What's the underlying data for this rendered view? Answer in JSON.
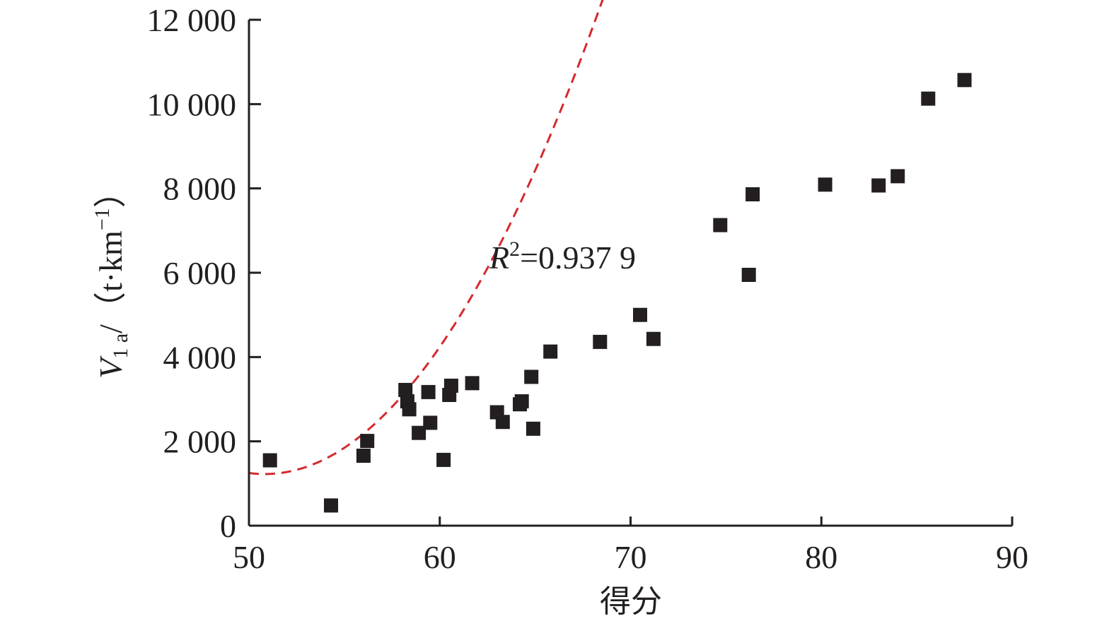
{
  "chart_data": {
    "type": "scatter",
    "xlabel": "得分",
    "ylabel": {
      "symbol": "V",
      "subscript": "1 a",
      "unit": "/（t·km",
      "unit_sup": "−1",
      "unit_close": "）"
    },
    "xlim": [
      50,
      90
    ],
    "ylim": [
      0,
      12000
    ],
    "x_ticks": [
      "50",
      "60",
      "70",
      "80",
      "90"
    ],
    "y_ticks": [
      "0",
      "2 000",
      "4 000",
      "6 000",
      "8 000",
      "10 000",
      "12 000"
    ],
    "grid": false,
    "marker": "square",
    "point_color": "#231f20",
    "trend_color": "#d42a2f",
    "trend_type": "polynomial (order 2)",
    "trend_coefficients": [
      35.9,
      -3650,
      94000
    ],
    "annotation": {
      "r": "R",
      "sup": "2",
      "value": "=0.937 9"
    },
    "points": [
      {
        "x": 51.1,
        "y": 1550
      },
      {
        "x": 54.3,
        "y": 480
      },
      {
        "x": 56.0,
        "y": 1660
      },
      {
        "x": 56.2,
        "y": 2010
      },
      {
        "x": 58.2,
        "y": 3220
      },
      {
        "x": 58.3,
        "y": 2950
      },
      {
        "x": 58.4,
        "y": 2760
      },
      {
        "x": 58.9,
        "y": 2200
      },
      {
        "x": 59.4,
        "y": 3170
      },
      {
        "x": 59.5,
        "y": 2440
      },
      {
        "x": 60.2,
        "y": 1560
      },
      {
        "x": 60.5,
        "y": 3100
      },
      {
        "x": 60.6,
        "y": 3320
      },
      {
        "x": 61.7,
        "y": 3380
      },
      {
        "x": 63.0,
        "y": 2690
      },
      {
        "x": 63.3,
        "y": 2460
      },
      {
        "x": 64.2,
        "y": 2880
      },
      {
        "x": 64.3,
        "y": 2950
      },
      {
        "x": 64.8,
        "y": 3530
      },
      {
        "x": 64.9,
        "y": 2300
      },
      {
        "x": 65.8,
        "y": 4130
      },
      {
        "x": 68.4,
        "y": 4360
      },
      {
        "x": 70.5,
        "y": 5000
      },
      {
        "x": 71.2,
        "y": 4430
      },
      {
        "x": 74.7,
        "y": 7130
      },
      {
        "x": 76.2,
        "y": 5950
      },
      {
        "x": 76.4,
        "y": 7860
      },
      {
        "x": 80.2,
        "y": 8090
      },
      {
        "x": 83.0,
        "y": 8070
      },
      {
        "x": 84.0,
        "y": 8290
      },
      {
        "x": 85.6,
        "y": 10130
      },
      {
        "x": 87.5,
        "y": 10570
      }
    ]
  }
}
